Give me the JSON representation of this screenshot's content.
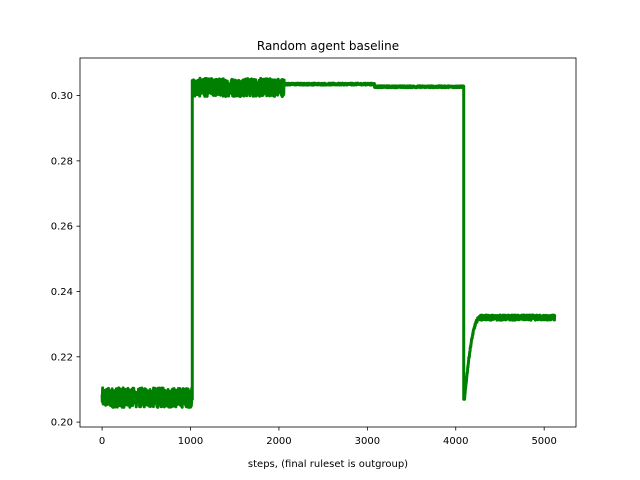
{
  "chart_data": {
    "type": "line",
    "title": "Random agent baseline",
    "xlabel": "steps, (final ruleset is outgroup)",
    "ylabel": "",
    "xlim": [
      -250,
      5360
    ],
    "ylim": [
      0.1985,
      0.3115
    ],
    "xticks": [
      0,
      1000,
      2000,
      3000,
      4000,
      5000
    ],
    "xtick_labels": [
      "0",
      "1000",
      "2000",
      "3000",
      "4000",
      "5000"
    ],
    "yticks": [
      0.2,
      0.22,
      0.24,
      0.26,
      0.28,
      0.3
    ],
    "ytick_labels": [
      "0.20",
      "0.22",
      "0.24",
      "0.26",
      "0.28",
      "0.30"
    ],
    "grid": false,
    "legend": "none",
    "series": [
      {
        "color": "#008000",
        "segments": [
          {
            "x_start": 0,
            "x_end": 1020,
            "mean": 0.2075,
            "noise": 0.003
          },
          {
            "x_start": 1020,
            "x_end": 2060,
            "mean": 0.3025,
            "noise": 0.0028
          },
          {
            "x_start": 2060,
            "x_end": 3080,
            "mean": 0.3035,
            "noise": 0.0003
          },
          {
            "x_start": 3080,
            "x_end": 4090,
            "mean": 0.3027,
            "noise": 0.0003
          },
          {
            "x_start": 4090,
            "x_end": 4100,
            "mean": 0.207,
            "noise": 0.0
          },
          {
            "x_start": 4100,
            "x_end": 4280,
            "mean": 0.232,
            "noise": 0.0005,
            "rise_from": 0.207
          },
          {
            "x_start": 4280,
            "x_end": 5120,
            "mean": 0.232,
            "noise": 0.0008
          }
        ]
      }
    ]
  }
}
